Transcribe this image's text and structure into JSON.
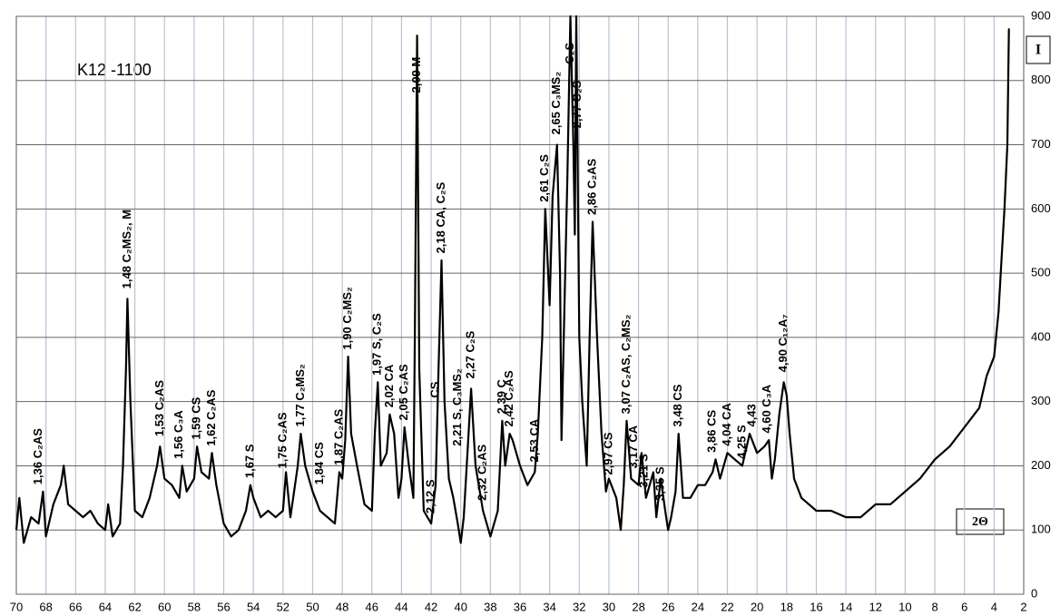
{
  "chart_data": {
    "type": "line",
    "title": "K12 -1100",
    "y_label": "I",
    "x_label": "2Θ",
    "color": "#000000",
    "grid": true,
    "xlim": [
      70,
      2
    ],
    "ylim": [
      0,
      900
    ],
    "xticks": [
      70,
      68,
      66,
      64,
      62,
      60,
      58,
      56,
      54,
      52,
      50,
      48,
      46,
      44,
      42,
      40,
      38,
      36,
      34,
      32,
      30,
      28,
      26,
      24,
      22,
      20,
      18,
      16,
      14,
      12,
      10,
      8,
      6,
      4,
      2
    ],
    "yticks": [
      0,
      100,
      200,
      300,
      400,
      500,
      600,
      700,
      800,
      900
    ],
    "x": [
      70,
      69.8,
      69.5,
      69,
      68.5,
      68.2,
      68,
      67.5,
      67,
      66.8,
      66.5,
      66,
      65.5,
      65,
      64.5,
      64,
      63.8,
      63.5,
      63,
      62.8,
      62.6,
      62.5,
      62.3,
      62,
      61.5,
      61,
      60.5,
      60.3,
      60,
      59.5,
      59,
      58.8,
      58.5,
      58,
      57.8,
      57.5,
      57,
      56.8,
      56.5,
      56,
      55.5,
      55,
      54.5,
      54.2,
      54,
      53.5,
      53,
      52.5,
      52,
      51.8,
      51.5,
      51,
      50.8,
      50.5,
      50,
      49.5,
      49,
      48.5,
      48.2,
      48,
      47.8,
      47.6,
      47.4,
      47,
      46.5,
      46,
      45.8,
      45.6,
      45.4,
      45,
      44.8,
      44.5,
      44.2,
      44,
      43.8,
      43.5,
      43.2,
      43.1,
      42.95,
      42.8,
      42.5,
      42,
      41.7,
      41.5,
      41.3,
      41.1,
      40.8,
      40.5,
      40.2,
      40,
      39.8,
      39.5,
      39.3,
      39,
      38.5,
      38,
      37.5,
      37.2,
      37,
      36.7,
      36.5,
      36,
      35.5,
      35,
      34.8,
      34.5,
      34.3,
      34,
      33.8,
      33.5,
      33.3,
      33.2,
      33,
      32.8,
      32.6,
      32.4,
      32.3,
      32.2,
      32,
      31.8,
      31.5,
      31.3,
      31.1,
      30.8,
      30.5,
      30.2,
      30,
      29.5,
      29.2,
      29,
      28.8,
      28.5,
      28,
      27.8,
      27.5,
      27,
      26.8,
      26.5,
      26.2,
      26,
      25.8,
      25.5,
      25.3,
      25,
      24.5,
      24,
      23.5,
      23,
      22.8,
      22.5,
      22,
      21.5,
      21,
      20.5,
      20,
      19.5,
      19.2,
      19,
      18.8,
      18.5,
      18.2,
      18,
      17.8,
      17.5,
      17,
      16,
      15,
      14,
      13,
      12,
      11,
      10,
      9,
      8,
      7,
      6,
      5,
      4.5,
      4,
      3.7,
      3.5,
      3.3,
      3.1,
      3,
      2.95
    ],
    "values": [
      100,
      150,
      80,
      120,
      110,
      160,
      90,
      140,
      170,
      200,
      140,
      130,
      120,
      130,
      110,
      100,
      140,
      90,
      110,
      200,
      350,
      460,
      300,
      130,
      120,
      150,
      200,
      230,
      180,
      170,
      150,
      200,
      160,
      180,
      230,
      190,
      180,
      220,
      170,
      110,
      90,
      100,
      130,
      170,
      150,
      120,
      130,
      120,
      130,
      190,
      120,
      200,
      250,
      200,
      160,
      130,
      120,
      110,
      190,
      180,
      240,
      370,
      250,
      200,
      140,
      130,
      250,
      330,
      200,
      220,
      280,
      250,
      150,
      180,
      260,
      200,
      150,
      400,
      870,
      350,
      130,
      110,
      170,
      350,
      520,
      300,
      180,
      150,
      110,
      80,
      120,
      240,
      320,
      200,
      130,
      90,
      130,
      270,
      200,
      250,
      240,
      200,
      170,
      190,
      250,
      400,
      600,
      450,
      620,
      700,
      500,
      240,
      450,
      650,
      900,
      700,
      560,
      900,
      400,
      300,
      200,
      400,
      580,
      400,
      250,
      160,
      180,
      150,
      100,
      170,
      270,
      180,
      170,
      220,
      150,
      190,
      120,
      180,
      130,
      100,
      120,
      160,
      250,
      150,
      150,
      170,
      170,
      190,
      210,
      180,
      220,
      210,
      200,
      250,
      220,
      230,
      240,
      180,
      210,
      280,
      330,
      310,
      250,
      180,
      150,
      130,
      130,
      120,
      120,
      140,
      140,
      160,
      180,
      210,
      230,
      260,
      290,
      340,
      370,
      440,
      520,
      600,
      700,
      880,
      880
    ],
    "annotations": [
      {
        "text": "1,36 C₂AS",
        "x": 68.5,
        "y": 165
      },
      {
        "text": "1,48 C₂MS₂, M",
        "x": 62.5,
        "y": 470
      },
      {
        "text": "1,53 C₂AS",
        "x": 60.3,
        "y": 240
      },
      {
        "text": "1,56 C₃A",
        "x": 59,
        "y": 205
      },
      {
        "text": "1,59 CS",
        "x": 57.8,
        "y": 235
      },
      {
        "text": "1,62 C₂AS",
        "x": 56.8,
        "y": 225
      },
      {
        "text": "1,67 S",
        "x": 54.2,
        "y": 175
      },
      {
        "text": "1,75 C₂AS",
        "x": 52,
        "y": 190
      },
      {
        "text": "1,77 C₂MS₂",
        "x": 50.8,
        "y": 255
      },
      {
        "text": "1,84 CS",
        "x": 49.5,
        "y": 165
      },
      {
        "text": "1,87 C₂AS",
        "x": 48.2,
        "y": 195
      },
      {
        "text": "1,90 C₂MS₂",
        "x": 47.6,
        "y": 375
      },
      {
        "text": "1,97 S, C₂S",
        "x": 45.6,
        "y": 335
      },
      {
        "text": "2,02 CA",
        "x": 44.8,
        "y": 285
      },
      {
        "text": "2,05 C₂AS",
        "x": 43.8,
        "y": 265
      },
      {
        "text": "2,09 M",
        "x": 42.95,
        "y": 775
      },
      {
        "text": "2,12 S",
        "x": 42,
        "y": 120
      },
      {
        "text": "CS",
        "x": 41.7,
        "y": 300
      },
      {
        "text": "2,18 CA, C₂S",
        "x": 41.3,
        "y": 525
      },
      {
        "text": "2,21 S, C₃MS₂",
        "x": 40.2,
        "y": 225
      },
      {
        "text": "2,27 C₂S",
        "x": 39.3,
        "y": 330
      },
      {
        "text": "2,32 C₂AS",
        "x": 38.5,
        "y": 140
      },
      {
        "text": "2,39 C",
        "x": 37.2,
        "y": 275
      },
      {
        "text": "2,42 C₂AS",
        "x": 36.7,
        "y": 255
      },
      {
        "text": "2,53 CA",
        "x": 35,
        "y": 200
      },
      {
        "text": "2,61 C₂S",
        "x": 34.3,
        "y": 605
      },
      {
        "text": "2,65 C₃MS₂",
        "x": 33.5,
        "y": 710
      },
      {
        "text": "C₂S",
        "x": 32.6,
        "y": 820
      },
      {
        "text": "2,77 C₂S",
        "x": 32.1,
        "y": 720
      },
      {
        "text": "2,86 C₂AS",
        "x": 31.1,
        "y": 585
      },
      {
        "text": "2,97 CS",
        "x": 30,
        "y": 180
      },
      {
        "text": "3,07 C₂AS, C₂MS₂",
        "x": 28.8,
        "y": 275
      },
      {
        "text": "3,17 CA",
        "x": 28.3,
        "y": 190
      },
      {
        "text": "3,21 S",
        "x": 27.6,
        "y": 160
      },
      {
        "text": "3,35 S",
        "x": 26.5,
        "y": 140
      },
      {
        "text": "3,48 CS",
        "x": 25.3,
        "y": 255
      },
      {
        "text": "3,86 CS",
        "x": 23,
        "y": 215
      },
      {
        "text": "4,04 CA",
        "x": 22,
        "y": 225
      },
      {
        "text": "4,25 S",
        "x": 21,
        "y": 205
      },
      {
        "text": "4,43",
        "x": 20.3,
        "y": 255
      },
      {
        "text": "4,60 C₃A",
        "x": 19.3,
        "y": 245
      },
      {
        "text": "4,90 C₁₂A₇",
        "x": 18.2,
        "y": 340
      }
    ]
  }
}
